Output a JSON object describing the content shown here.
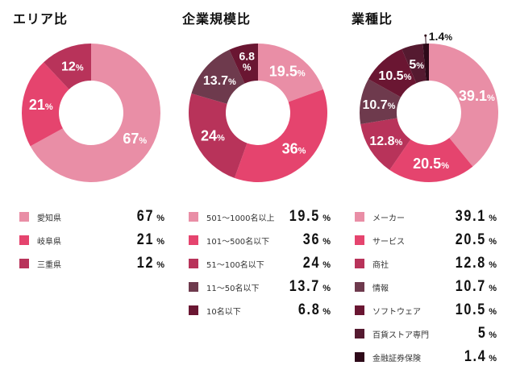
{
  "chart_data": [
    {
      "type": "pie",
      "subtype": "donut",
      "title": "エリア比",
      "unit": "%",
      "categories": [
        "愛知県",
        "岐阜県",
        "三重県"
      ],
      "values": [
        67,
        21,
        12
      ],
      "labels": [
        "67",
        "21",
        "12"
      ],
      "colors": [
        "#e98ea6",
        "#e5446e",
        "#b8335a"
      ],
      "start": "top",
      "direction": "clockwise",
      "legend": "bottom"
    },
    {
      "type": "pie",
      "subtype": "donut",
      "title": "企業規模比",
      "unit": "%",
      "categories": [
        "501〜1000名以上",
        "101〜500名以下",
        "51〜100名以下",
        "11〜50名以下",
        "10名以下"
      ],
      "values": [
        19.5,
        36,
        24,
        13.7,
        6.8
      ],
      "labels": [
        "19.5",
        "36",
        "24",
        "13.7",
        "6.8"
      ],
      "colors": [
        "#e98ea6",
        "#e5446e",
        "#b8335a",
        "#6e3a4d",
        "#6a1632"
      ],
      "start": "top",
      "direction": "clockwise",
      "legend": "bottom"
    },
    {
      "type": "pie",
      "subtype": "donut",
      "title": "業種比",
      "unit": "%",
      "categories": [
        "メーカー",
        "サービス",
        "商社",
        "情報",
        "ソフトウェア",
        "百貨ストア専門",
        "金融証券保険"
      ],
      "values": [
        39.1,
        20.5,
        12.8,
        10.7,
        10.5,
        5,
        1.4
      ],
      "labels": [
        "39.1",
        "20.5",
        "12.8",
        "10.7",
        "10.5",
        "5",
        "1.4"
      ],
      "colors": [
        "#e98ea6",
        "#e5446e",
        "#b8335a",
        "#6e3a4d",
        "#6a1632",
        "#551a30",
        "#2e0a19"
      ],
      "start": "top",
      "direction": "clockwise",
      "legend": "bottom"
    }
  ],
  "percent_sign": "%"
}
